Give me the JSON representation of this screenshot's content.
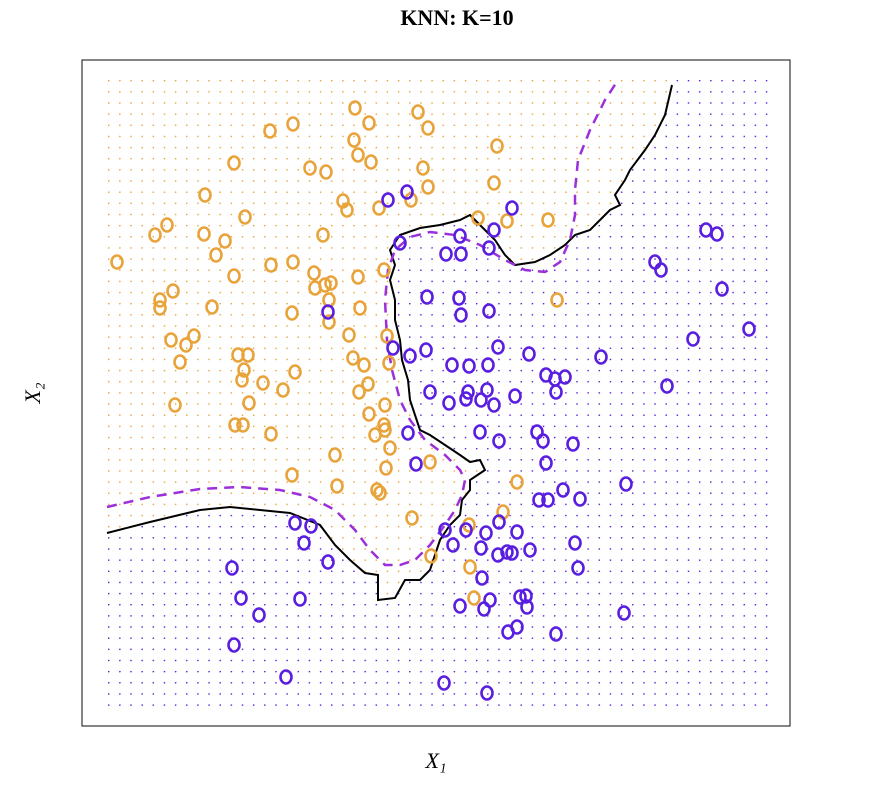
{
  "chart_data": {
    "type": "scatter",
    "title": "KNN: K=10",
    "xlabel": "X₁",
    "ylabel": "X₂",
    "xlim": [
      0,
      708
    ],
    "ylim": [
      0,
      666
    ],
    "series": [
      {
        "color": "#e8a33a",
        "x": [
          35,
          73,
          85,
          78,
          78,
          91,
          89,
          104,
          112,
          98,
          93,
          123,
          122,
          134,
          143,
          152,
          152,
          163,
          130,
          156,
          166,
          162,
          160,
          181,
          167,
          153,
          161,
          189,
          201,
          213,
          189,
          211,
          210,
          232,
          233,
          243,
          249,
          247,
          247,
          267,
          271,
          282,
          278,
          276,
          302,
          297,
          265,
          261,
          241,
          244,
          228,
          188,
          211,
          273,
          287,
          272,
          276,
          289,
          336,
          346,
          341,
          329,
          346,
          415,
          412,
          396,
          425,
          466,
          475,
          277,
          287,
          302,
          293,
          308,
          303,
          304,
          298,
          295,
          253,
          255,
          210,
          330,
          348,
          421,
          435,
          387,
          388,
          392,
          349,
          307,
          286,
          303,
          305
        ],
        "values": [
          464,
          491,
          501,
          426,
          418,
          435,
          386,
          381,
          390,
          364,
          321,
          531,
          492,
          471,
          485,
          563,
          450,
          509,
          419,
          371,
          371,
          356,
          346,
          343,
          323,
          301,
          301,
          292,
          336,
          354,
          461,
          464,
          413,
          453,
          438,
          441,
          443,
          426,
          404,
          391,
          368,
          361,
          418,
          449,
          456,
          518,
          516,
          525,
          491,
          554,
          558,
          595,
          602,
          618,
          603,
          586,
          571,
          564,
          614,
          598,
          558,
          526,
          539,
          580,
          543,
          508,
          505,
          506,
          426,
          334,
          312,
          301,
          291,
          278,
          296,
          258,
          233,
          236,
          271,
          240,
          251,
          208,
          264,
          214,
          244,
          201,
          159,
          128,
          170,
          363,
          342,
          321,
          390
        ]
      },
      {
        "color": "#5a1ee0",
        "x": [
          325,
          306,
          430,
          412,
          378,
          318,
          364,
          379,
          407,
          345,
          377,
          379,
          407,
          246,
          311,
          328,
          344,
          416,
          447,
          370,
          387,
          406,
          348,
          386,
          405,
          367,
          384,
          399,
          412,
          433,
          464,
          473,
          483,
          474,
          519,
          585,
          611,
          667,
          640,
          573,
          579,
          624,
          635,
          398,
          417,
          455,
          461,
          491,
          464,
          326,
          334,
          466,
          481,
          457,
          498,
          544,
          363,
          384,
          404,
          417,
          435,
          371,
          399,
          425,
          430,
          448,
          493,
          496,
          416,
          213,
          229,
          222,
          246,
          150,
          159,
          177,
          218,
          152,
          204,
          362,
          405,
          378,
          402,
          400,
          408,
          438,
          444,
          445,
          426,
          435,
          474,
          542
        ],
        "values": [
          534,
          526,
          518,
          496,
          490,
          483,
          472,
          472,
          478,
          429,
          428,
          411,
          415,
          414,
          378,
          370,
          376,
          379,
          372,
          361,
          360,
          361,
          334,
          334,
          336,
          323,
          327,
          326,
          321,
          330,
          351,
          347,
          349,
          334,
          369,
          340,
          387,
          397,
          437,
          464,
          456,
          496,
          492,
          294,
          285,
          294,
          285,
          282,
          263,
          293,
          262,
          226,
          236,
          226,
          227,
          242,
          196,
          196,
          193,
          204,
          194,
          181,
          178,
          174,
          173,
          176,
          183,
          158,
          171,
          203,
          200,
          183,
          164,
          158,
          128,
          111,
          127,
          81,
          49,
          43,
          33,
          120,
          117,
          148,
          126,
          129,
          130,
          119,
          94,
          99,
          92,
          113
        ]
      }
    ]
  }
}
